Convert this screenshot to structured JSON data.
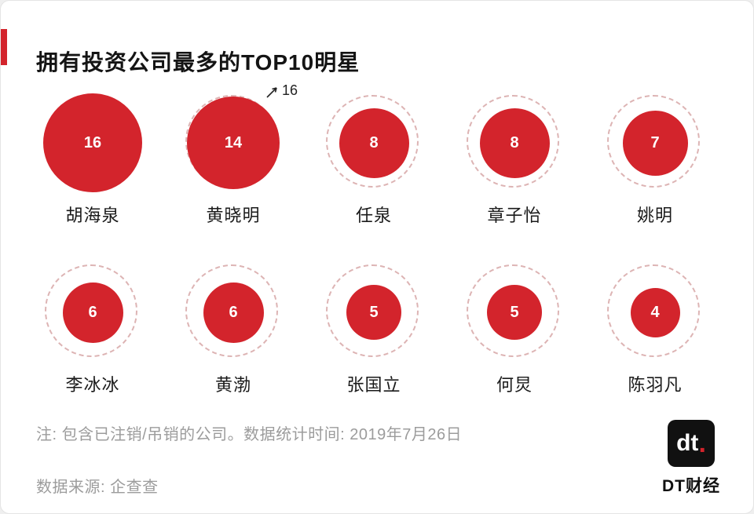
{
  "title": "拥有投资公司最多的TOP10明星",
  "annotation": {
    "label": "16"
  },
  "notes": {
    "note": "注: 包含已注销/吊销的公司。数据统计时间: 2019年7月26日",
    "source": "数据来源: 企查查"
  },
  "logo": {
    "mark": "dt",
    "dot": ".",
    "text": "DT财经"
  },
  "colors": {
    "accent": "#d3242c",
    "dashed_ring": "#ddb4b4",
    "note_gray": "#9c9c9c"
  },
  "chart_data": {
    "type": "bubble",
    "title": "拥有投资公司最多的TOP10明星",
    "max_reference": 16,
    "legend_position": "none",
    "items": [
      {
        "name": "胡海泉",
        "value": 16
      },
      {
        "name": "黄晓明",
        "value": 14
      },
      {
        "name": "任泉",
        "value": 8
      },
      {
        "name": "章子怡",
        "value": 8
      },
      {
        "name": "姚明",
        "value": 7
      },
      {
        "name": "李冰冰",
        "value": 6
      },
      {
        "name": "黄渤",
        "value": 6
      },
      {
        "name": "张国立",
        "value": 5
      },
      {
        "name": "何炅",
        "value": 5
      },
      {
        "name": "陈羽凡",
        "value": 4
      }
    ]
  }
}
